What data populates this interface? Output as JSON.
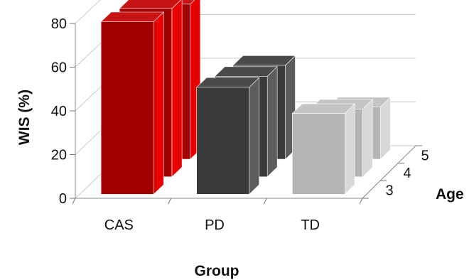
{
  "chart_data": {
    "type": "bar",
    "subtype": "3d-grouped",
    "xlabel": "Group",
    "ylabel": "WIS (%)",
    "zlabel": "Age",
    "categories": [
      "CAS",
      "PD",
      "TD"
    ],
    "ylim": [
      0,
      80
    ],
    "yticks": [
      "0",
      "20",
      "40",
      "60",
      "80"
    ],
    "series": [
      {
        "name": "3",
        "values": [
          79,
          49,
          37
        ]
      },
      {
        "name": "4",
        "values": [
          77,
          46,
          31
        ]
      },
      {
        "name": "5",
        "values": [
          71,
          43,
          24
        ]
      }
    ],
    "colors": {
      "CAS": {
        "front": "#a50000",
        "side": "#e80000",
        "top": "#c81414"
      },
      "PD": {
        "front": "#3b3b3b",
        "side": "#5c5c5c",
        "top": "#4a4a4a"
      },
      "TD": {
        "front": "#b4b4b4",
        "side": "#d8d8d8",
        "top": "#c4c4c4"
      }
    },
    "grid": true
  }
}
